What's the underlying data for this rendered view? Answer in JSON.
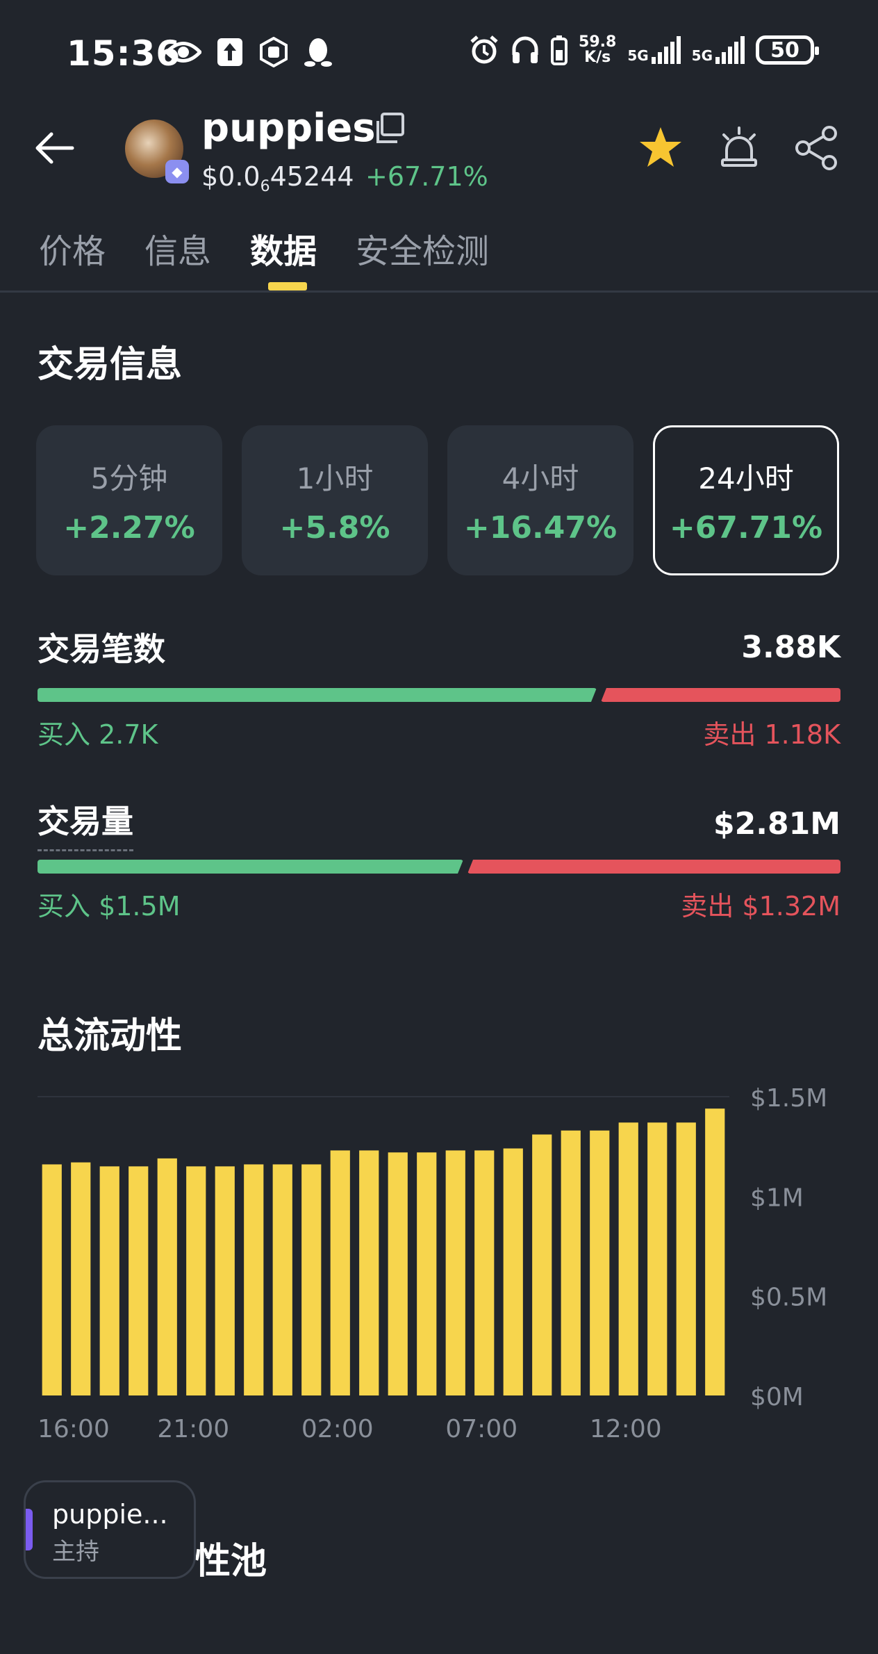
{
  "status_bar": {
    "time": "15:36",
    "net_speed_value": "59.8",
    "net_speed_unit": "K/s",
    "network_1": "5G",
    "network_2": "5G",
    "battery": "50",
    "icons": [
      "eye-icon",
      "upload-icon",
      "hand-shield-icon",
      "penguin-icon",
      "alarm-clock-icon",
      "headphones-icon",
      "battery-saver-icon",
      "signal-icon"
    ]
  },
  "header": {
    "token_name": "puppies",
    "price_prefix": "$0.0",
    "price_subscript": "6",
    "price_suffix": "45244",
    "price_change": "+67.71%",
    "chain_icon": "ethereum-icon",
    "star_color": "#f7c531"
  },
  "tabs": [
    {
      "label": "价格",
      "active": false
    },
    {
      "label": "信息",
      "active": false
    },
    {
      "label": "数据",
      "active": true
    },
    {
      "label": "安全检测",
      "active": false
    }
  ],
  "trade_info": {
    "title": "交易信息",
    "periods": [
      {
        "label": "5分钟",
        "value": "+2.27%"
      },
      {
        "label": "1小时",
        "value": "+5.8%"
      },
      {
        "label": "4小时",
        "value": "+16.47%"
      },
      {
        "label": "24小时",
        "value": "+67.71%",
        "selected": true
      }
    ],
    "tx_count": {
      "label": "交易笔数",
      "total": "3.88K",
      "buy": "买入 2.7K",
      "sell": "卖出 1.18K",
      "buy_fraction": 0.696
    },
    "volume": {
      "label": "交易量",
      "total": "$2.81M",
      "buy": "买入 $1.5M",
      "sell": "卖出 $1.32M",
      "buy_fraction": 0.53
    }
  },
  "liquidity": {
    "title": "总流动性"
  },
  "chart_data": {
    "type": "bar",
    "title": "总流动性",
    "values": [
      1.16,
      1.17,
      1.15,
      1.15,
      1.19,
      1.15,
      1.15,
      1.16,
      1.16,
      1.16,
      1.23,
      1.23,
      1.22,
      1.22,
      1.23,
      1.23,
      1.24,
      1.31,
      1.33,
      1.33,
      1.37,
      1.37,
      1.37,
      1.44
    ],
    "unit": "M",
    "ylim": [
      0,
      1.5
    ],
    "y_ticks": [
      "$1.5M",
      "$1M",
      "$0.5M",
      "$0M"
    ],
    "x_ticks": [
      "16:00",
      "21:00",
      "02:00",
      "07:00",
      "12:00"
    ],
    "bar_color": "#f7d54d",
    "grid": true
  },
  "floating_chip": {
    "name": "puppie...",
    "role": "主持"
  },
  "next_section": {
    "title_visible": "性池"
  }
}
